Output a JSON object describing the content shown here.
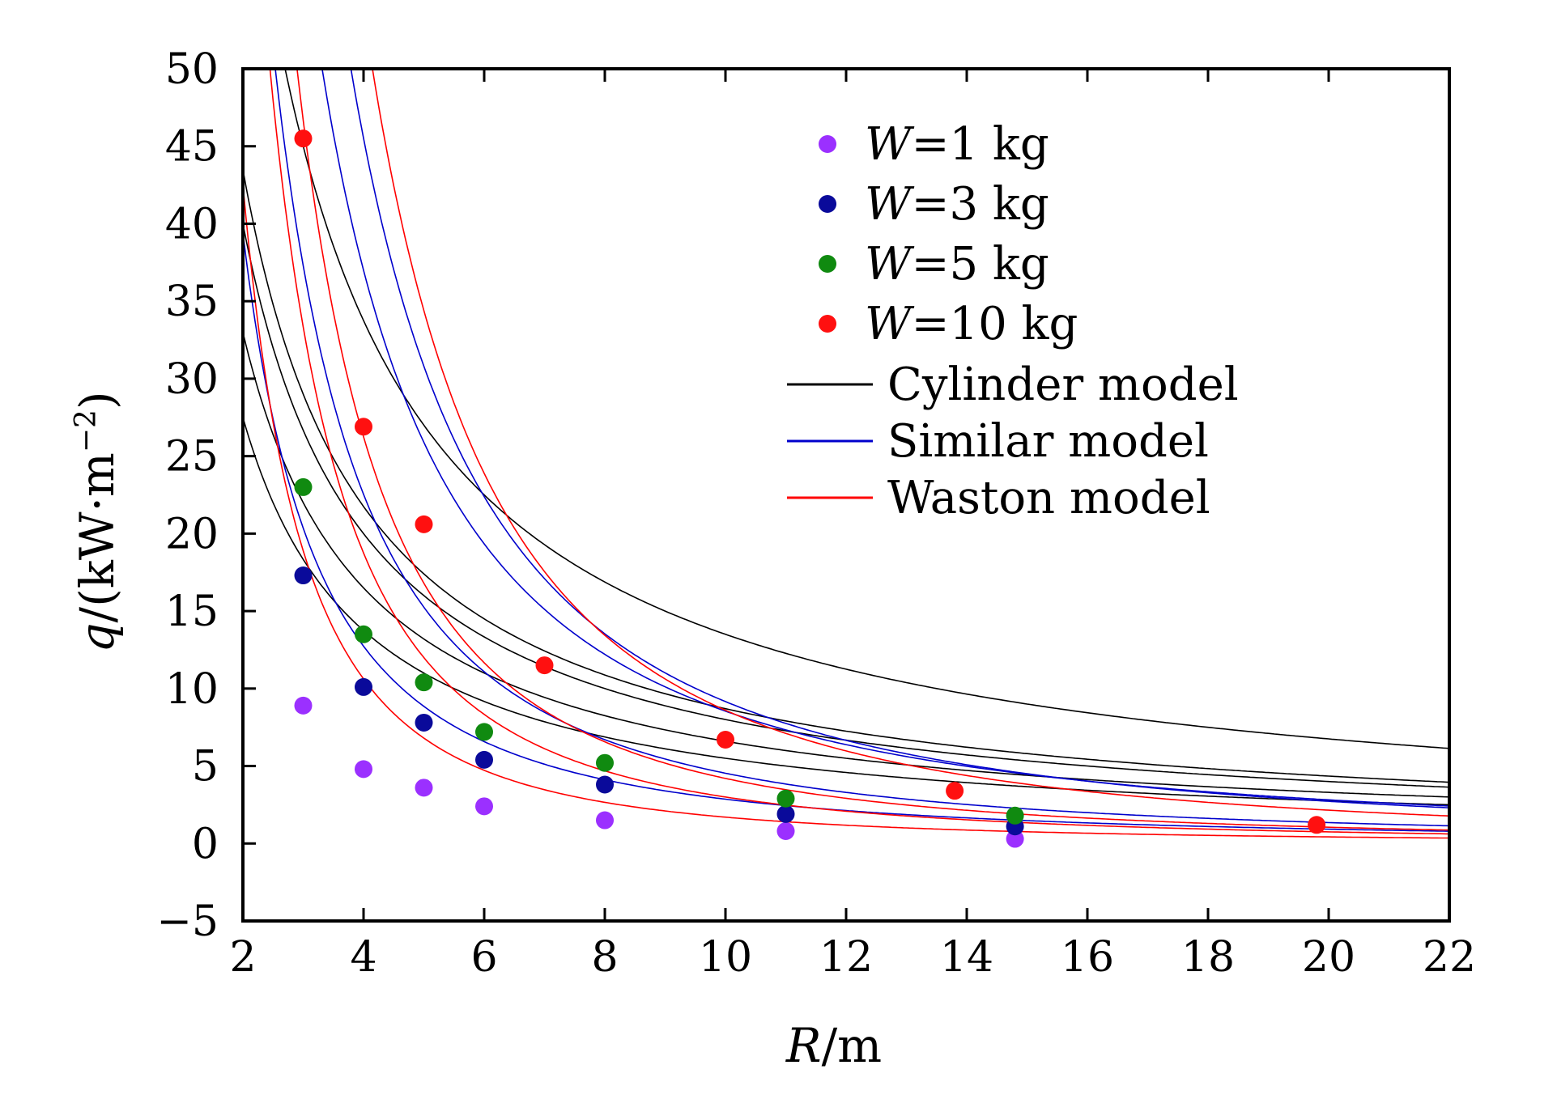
{
  "chart_data": {
    "type": "scatter",
    "title": "",
    "xlabel": {
      "var": "R",
      "unit": "/m"
    },
    "ylabel": {
      "var": "q",
      "unit": "/(kW·m",
      "exp": "−2",
      "close": ")"
    },
    "xlim": [
      2,
      22
    ],
    "ylim": [
      -5,
      50
    ],
    "x_ticks": [
      2,
      4,
      6,
      8,
      10,
      12,
      14,
      16,
      18,
      20,
      22
    ],
    "y_ticks": [
      -5,
      0,
      5,
      10,
      15,
      20,
      25,
      30,
      35,
      40,
      45,
      50
    ],
    "y_tick_labels": [
      "−5",
      "0",
      "5",
      "10",
      "15",
      "20",
      "25",
      "30",
      "35",
      "40",
      "45",
      "50"
    ],
    "grid": false,
    "legend_position": "top-right",
    "series": [
      {
        "name": {
          "var": "W",
          "value": "=1 kg"
        },
        "color": "#9b30ff",
        "points": [
          [
            3,
            8.9
          ],
          [
            4,
            4.8
          ],
          [
            5,
            3.6
          ],
          [
            6,
            2.4
          ],
          [
            8,
            1.5
          ],
          [
            11,
            0.8
          ],
          [
            14.8,
            0.3
          ]
        ]
      },
      {
        "name": {
          "var": "W",
          "value": "=3 kg"
        },
        "color": "#0a0a9a",
        "points": [
          [
            3.0,
            17.3
          ],
          [
            4,
            10.1
          ],
          [
            5,
            7.8
          ],
          [
            6,
            5.4
          ],
          [
            8,
            3.8
          ],
          [
            11,
            1.9
          ],
          [
            14.8,
            1.1
          ]
        ]
      },
      {
        "name": {
          "var": "W",
          "value": "=5 kg"
        },
        "color": "#108a10",
        "points": [
          [
            3.0,
            23.0
          ],
          [
            4,
            13.5
          ],
          [
            5,
            10.4
          ],
          [
            6,
            7.2
          ],
          [
            8,
            5.2
          ],
          [
            11,
            2.9
          ],
          [
            14.8,
            1.8
          ]
        ]
      },
      {
        "name": {
          "var": "W",
          "value": "=10 kg"
        },
        "color": "#ff1010",
        "points": [
          [
            3.0,
            45.5
          ],
          [
            4,
            26.9
          ],
          [
            5,
            20.6
          ],
          [
            7,
            11.5
          ],
          [
            10,
            6.7
          ],
          [
            13.8,
            3.4
          ],
          [
            19.8,
            1.2
          ]
        ]
      }
    ],
    "models": [
      {
        "name": "Cylinder model",
        "color": "#000000"
      },
      {
        "name": "Similar model",
        "color": "#0000cc"
      },
      {
        "name": "Waston model",
        "color": "#ff0000"
      }
    ],
    "model_curves": [
      {
        "model": "Cylinder model",
        "form": "a/R",
        "a": 55
      },
      {
        "model": "Cylinder model",
        "form": "a/R",
        "a": 66
      },
      {
        "model": "Cylinder model",
        "form": "a/R",
        "a": 87
      },
      {
        "model": "Cylinder model",
        "form": "a/R",
        "a": 135
      },
      {
        "model": "Cylinder model",
        "form": "a/R",
        "a": 80
      },
      {
        "model": "Similar model",
        "form": "a/R^b",
        "a": 122,
        "b": 1.63
      },
      {
        "model": "Similar model",
        "form": "a/R^b",
        "a": 255,
        "b": 1.75
      },
      {
        "model": "Similar model",
        "form": "a/R^b",
        "a": 340,
        "b": 1.6
      },
      {
        "model": "Similar model",
        "form": "a/R^b",
        "a": 515,
        "b": 1.75
      },
      {
        "model": "Waston model",
        "form": "a/R^b",
        "a": 170,
        "b": 2.0
      },
      {
        "model": "Waston model",
        "form": "a/R^b",
        "a": 300,
        "b": 2.0
      },
      {
        "model": "Waston model",
        "form": "a/R^b",
        "a": 420,
        "b": 2.0
      },
      {
        "model": "Waston model",
        "form": "a/R^b",
        "a": 860,
        "b": 2.0
      }
    ]
  }
}
